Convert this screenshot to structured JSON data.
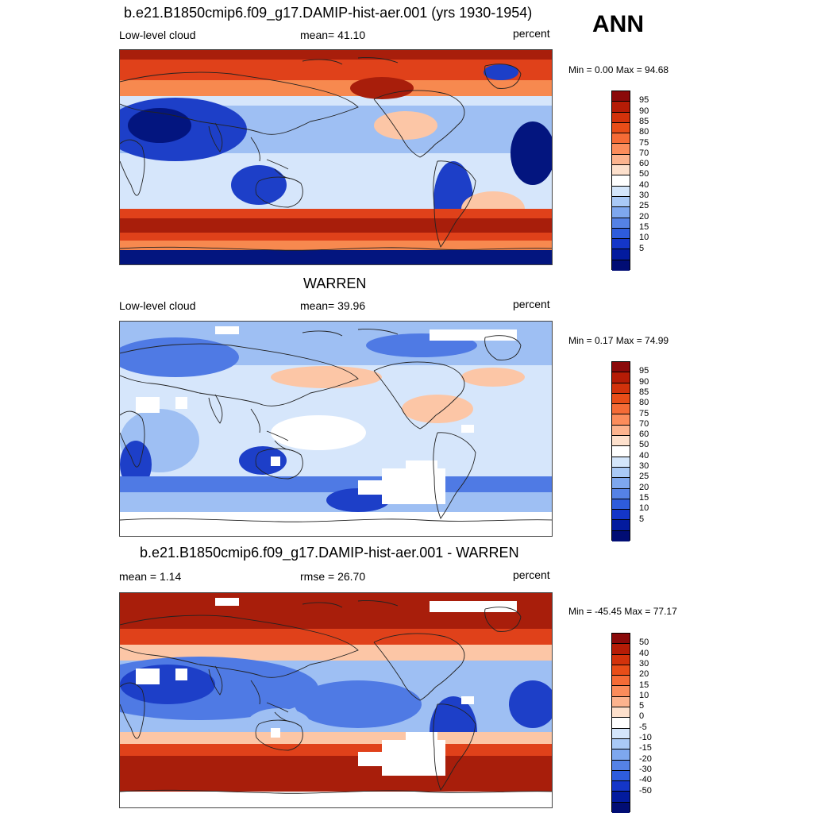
{
  "season": "ANN",
  "panels": [
    {
      "title": "b.e21.B1850cmip6.f09_g17.DAMIP-hist-aer.001 (yrs 1930-1954)",
      "left_label": "Low-level cloud",
      "center_label": "mean=  41.10",
      "units": "percent",
      "minmax": "Min =   0.00 Max =  94.68",
      "kind": "model"
    },
    {
      "title": "WARREN",
      "left_label": "Low-level cloud",
      "center_label": "mean=  39.96",
      "units": "percent",
      "minmax": "Min =   0.17 Max =  74.99",
      "kind": "obs"
    },
    {
      "title": "b.e21.B1850cmip6.f09_g17.DAMIP-hist-aer.001 - WARREN",
      "left_label": "mean =   1.14",
      "center_label": "rmse =  26.70",
      "units": "percent",
      "minmax": "Min = -45.45 Max =  77.17",
      "kind": "diff"
    }
  ],
  "colorbars": {
    "levels": {
      "labels": [
        "95",
        "90",
        "85",
        "80",
        "75",
        "70",
        "60",
        "50",
        "40",
        "30",
        "25",
        "20",
        "15",
        "10",
        "5"
      ],
      "colors": [
        "#8b0a0a",
        "#b51c06",
        "#d2320b",
        "#e84d18",
        "#f56b36",
        "#fb8c5b",
        "#fcb38e",
        "#fde0cc",
        "#ffffff",
        "#d4e6fb",
        "#a9c9f6",
        "#7ea7ee",
        "#5582e6",
        "#2e5cdc",
        "#1436c8",
        "#031b9e",
        "#010d74"
      ]
    },
    "diff": {
      "labels": [
        "50",
        "40",
        "30",
        "20",
        "15",
        "10",
        "5",
        "0",
        "-5",
        "-10",
        "-15",
        "-20",
        "-30",
        "-40",
        "-50"
      ],
      "colors": [
        "#8b0a0a",
        "#b51c06",
        "#d2320b",
        "#e84d18",
        "#f56b36",
        "#fb8c5b",
        "#fcb38e",
        "#fde0cc",
        "#ffffff",
        "#d4e6fb",
        "#a9c9f6",
        "#7ea7ee",
        "#5582e6",
        "#2e5cdc",
        "#1436c8",
        "#031b9e",
        "#010d74"
      ]
    }
  },
  "colors": {
    "deep_red": "#a81e0b",
    "red": "#e0411a",
    "orange": "#f7894f",
    "peach": "#fcc6a6",
    "white": "#ffffff",
    "pale_blue": "#d6e6fb",
    "light_blue": "#9ebff3",
    "blue": "#4f7ae4",
    "deep_blue": "#1d3fc8",
    "navy": "#03157f",
    "coastline": "#222222"
  }
}
